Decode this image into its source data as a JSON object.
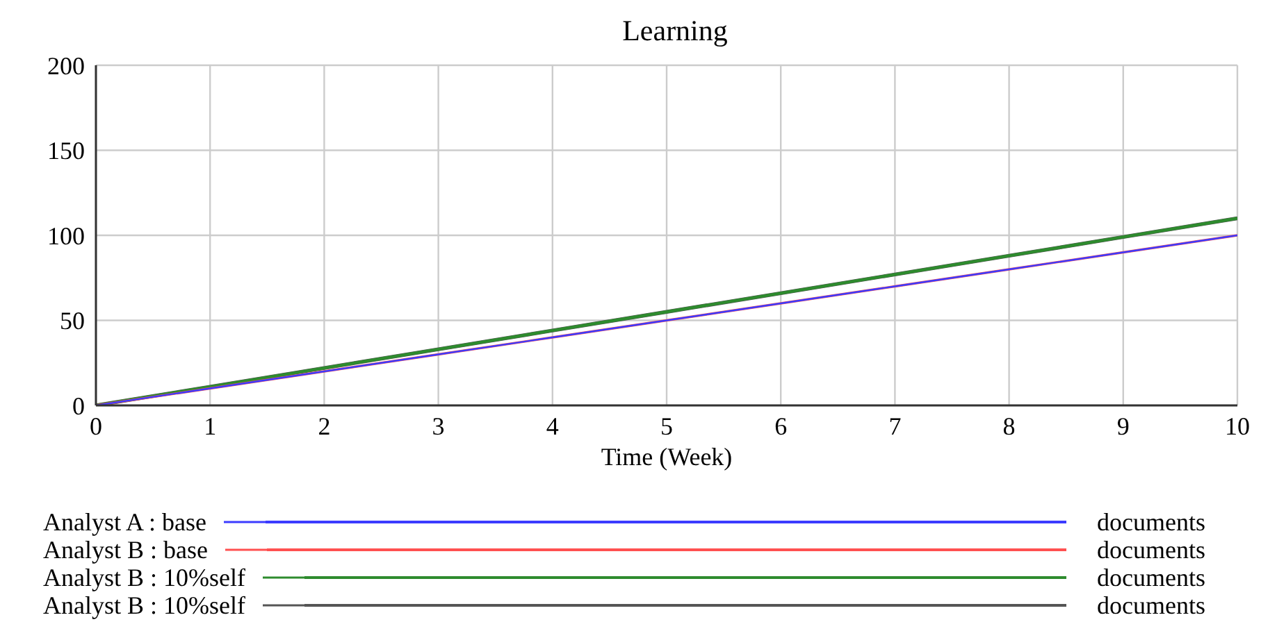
{
  "chart_data": {
    "type": "line",
    "title": "Learning",
    "xlabel": "Time (Week)",
    "x": [
      0,
      1,
      2,
      3,
      4,
      5,
      6,
      7,
      8,
      9,
      10
    ],
    "series": [
      {
        "name": "Analyst A : base",
        "color": "#3b3bff",
        "values": [
          0,
          10,
          20,
          30,
          40,
          50,
          60,
          70,
          80,
          90,
          100
        ]
      },
      {
        "name": "Analyst B : base",
        "color": "#ff5050",
        "values": [
          0,
          10,
          20,
          30,
          40,
          50,
          60,
          70,
          80,
          90,
          100
        ]
      },
      {
        "name": "Analyst B : 10%self",
        "color": "#2e8b2e",
        "values": [
          0,
          11,
          22,
          33,
          44,
          55,
          66,
          77,
          88,
          99,
          110
        ]
      },
      {
        "name": "Analyst B : 10%self",
        "color": "#555555",
        "values": [
          0,
          11,
          22,
          33,
          44,
          55,
          66,
          77,
          88,
          99,
          110
        ]
      }
    ],
    "annotations": [
      "documents",
      "documents",
      "documents",
      "documents"
    ],
    "xlim": [
      0,
      10
    ],
    "xticks": [
      0,
      1,
      2,
      3,
      4,
      5,
      6,
      7,
      8,
      9,
      10
    ],
    "ylim": [
      0,
      200
    ],
    "yticks": [
      0,
      50,
      100,
      150,
      200
    ],
    "grid": true,
    "legend": "bottom",
    "marker": "none",
    "line_style": "solid"
  }
}
